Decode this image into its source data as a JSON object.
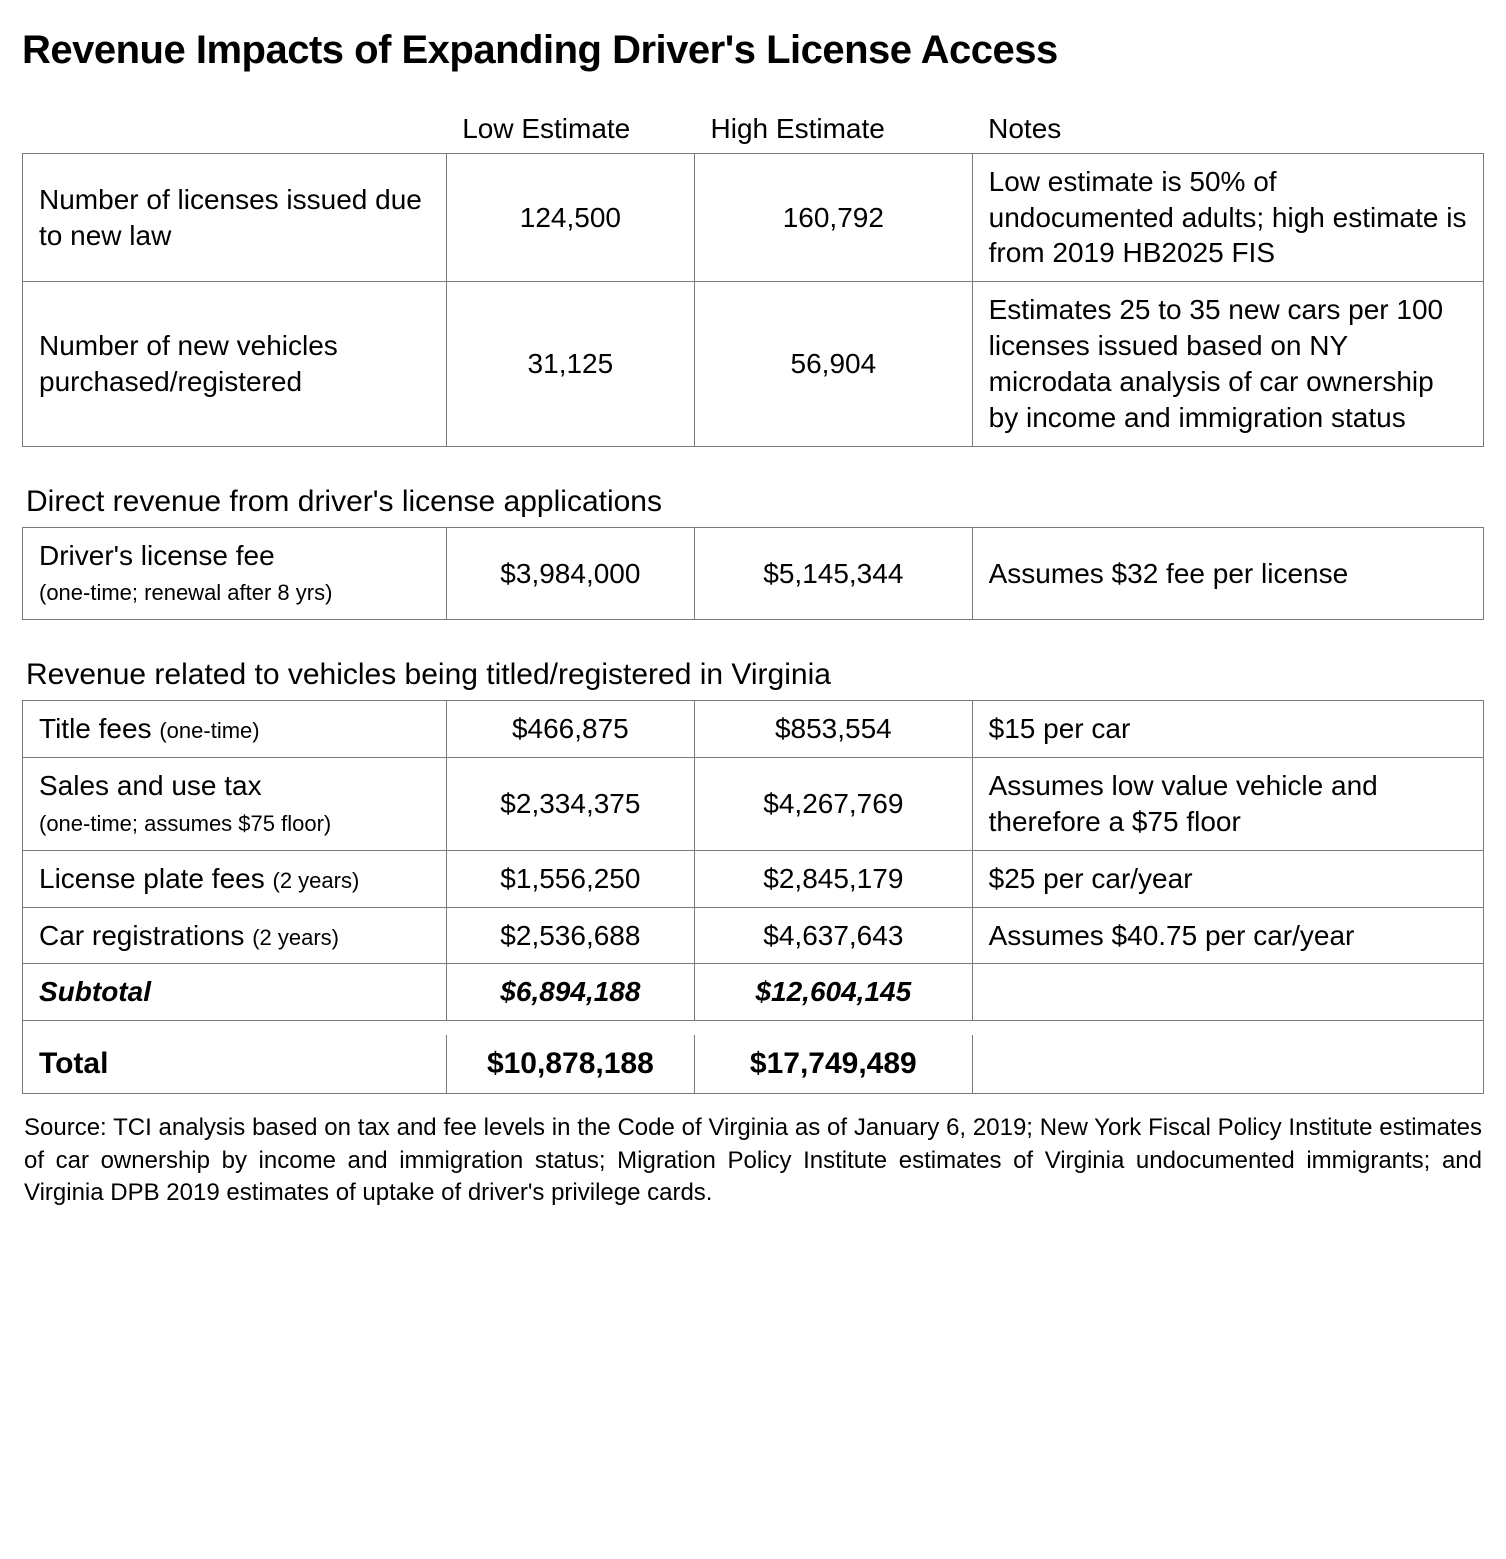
{
  "title": "Revenue Impacts of Expanding Driver's License Access",
  "columns": {
    "low": "Low Estimate",
    "high": "High Estimate",
    "notes": "Notes"
  },
  "table1": {
    "rows": [
      {
        "label": "Number of licenses issued due to new law",
        "low": "124,500",
        "high": "160,792",
        "notes": "Low estimate is 50% of undocumented adults; high estimate is from 2019 HB2025 FIS"
      },
      {
        "label": "Number of new vehicles purchased/registered",
        "low": "31,125",
        "high": "56,904",
        "notes": "Estimates 25 to 35 new cars per 100 licenses issued based on NY microdata analysis of car ownership by income and immigration status"
      }
    ]
  },
  "section2": {
    "heading": "Direct revenue from driver's license applications",
    "rows": [
      {
        "label_main": "Driver's license fee",
        "label_sub": "(one-time; renewal after 8 yrs)",
        "low": "$3,984,000",
        "high": "$5,145,344",
        "notes": "Assumes $32 fee per license"
      }
    ]
  },
  "section3": {
    "heading": "Revenue related to vehicles being titled/registered in Virginia",
    "rows": [
      {
        "label_main": "Title fees ",
        "label_sub": "(one-time)",
        "low": "$466,875",
        "high": "$853,554",
        "notes": "$15 per car"
      },
      {
        "label_main": "Sales and use tax",
        "label_sub": "(one-time; assumes $75 floor)",
        "low": "$2,334,375",
        "high": "$4,267,769",
        "notes": "Assumes low value vehicle and therefore a $75 floor"
      },
      {
        "label_main": "License plate fees ",
        "label_sub": "(2 years)",
        "low": "$1,556,250",
        "high": "$2,845,179",
        "notes": "$25 per car/year"
      },
      {
        "label_main": "Car registrations ",
        "label_sub": "(2 years)",
        "low": "$2,536,688",
        "high": "$4,637,643",
        "notes": "Assumes $40.75 per car/year"
      }
    ],
    "subtotal": {
      "label": "Subtotal",
      "low": "$6,894,188",
      "high": "$12,604,145"
    },
    "total": {
      "label": "Total",
      "low": "$10,878,188",
      "high": "$17,749,489"
    }
  },
  "source": "Source: TCI analysis based on tax and fee levels in the Code of Virginia as of January 6, 2019; New York Fiscal Policy Institute estimates of car ownership by income and immigration status; Migration Policy Institute estimates of Virginia undocumented immigrants; and Virginia DPB 2019 estimates of uptake of driver's privilege cards."
}
